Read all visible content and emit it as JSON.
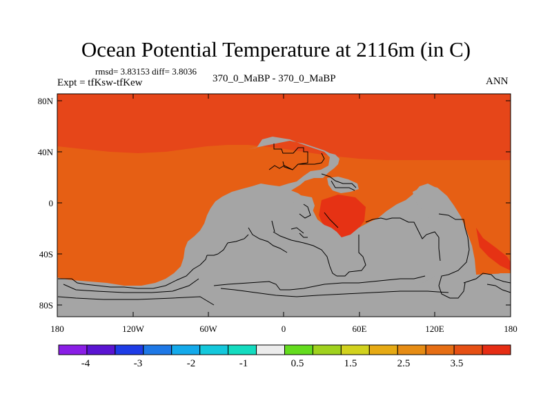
{
  "title": "Ocean Potential Temperature at 2116m (in C)",
  "stats": "rmsd= 3.83153 diff= 3.8036",
  "experiment": "Expt = tfKsw-tfKew",
  "comparison": "370_0_MaBP - 370_0_MaBP",
  "season": "ANN",
  "lat_labels": [
    "80N",
    "40N",
    "0",
    "40S",
    "80S"
  ],
  "lon_labels": [
    "180",
    "120W",
    "60W",
    "0",
    "60E",
    "120E",
    "180"
  ],
  "colorbar": {
    "colors": [
      "#8a1ee6",
      "#5a14d2",
      "#1e3ce6",
      "#1e78e6",
      "#14aaeb",
      "#14c8dc",
      "#14dcc0",
      "#ececec",
      "#64dc1e",
      "#a0d21e",
      "#d2d21e",
      "#e6aa14",
      "#e68c14",
      "#e66e14",
      "#e65014",
      "#e62d14"
    ],
    "labels": [
      "-4",
      "-3",
      "-2",
      "-1",
      "0.5",
      "1.5",
      "2.5",
      "3.5"
    ]
  },
  "map_colors": {
    "north_band": "#e64619",
    "ocean_main": "#e65f14",
    "hot_spot": "#e63214",
    "land": "#a5a5a5"
  }
}
